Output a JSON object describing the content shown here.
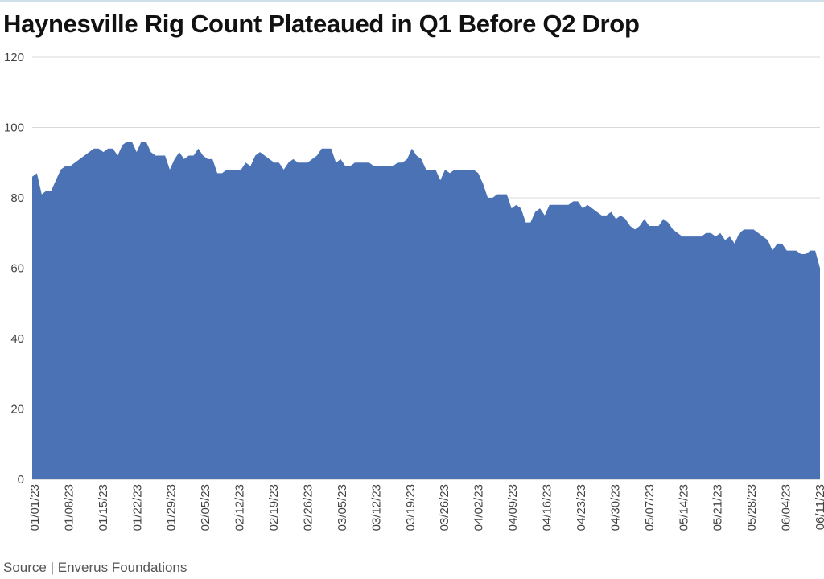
{
  "title": "Haynesville Rig Count Plateaued in Q1 Before Q2 Drop",
  "source": "Source | Enverus Foundations",
  "colors": {
    "area": "#4a72b5",
    "grid": "#d9d9d9",
    "axis": "#bfbfbf",
    "text": "#444444"
  },
  "chart_data": {
    "type": "area",
    "title": "Haynesville Rig Count Plateaued in Q1 Before Q2 Drop",
    "xlabel": "",
    "ylabel": "",
    "ylim": [
      0,
      120
    ],
    "yticks": [
      0,
      20,
      40,
      60,
      80,
      100,
      120
    ],
    "grid": true,
    "x_tick_labels": [
      "01/01/23",
      "01/08/23",
      "01/15/23",
      "01/22/23",
      "01/29/23",
      "02/05/23",
      "02/12/23",
      "02/19/23",
      "02/26/23",
      "03/05/23",
      "03/12/23",
      "03/19/23",
      "03/26/23",
      "04/02/23",
      "04/09/23",
      "04/16/23",
      "04/23/23",
      "04/30/23",
      "05/07/23",
      "05/14/23",
      "05/21/23",
      "05/28/23",
      "06/04/23",
      "06/11/23"
    ],
    "x_start": "01/01/23",
    "x_end": "06/12/23",
    "series": [
      {
        "values": [
          86,
          87,
          81,
          82,
          82,
          85,
          88,
          89,
          89,
          90,
          91,
          92,
          93,
          94,
          94,
          93,
          94,
          94,
          92,
          95,
          96,
          96,
          93,
          96,
          96,
          93,
          92,
          92,
          92,
          88,
          91,
          93,
          91,
          92,
          92,
          94,
          92,
          91,
          91,
          87,
          87,
          88,
          88,
          88,
          88,
          90,
          89,
          92,
          93,
          92,
          91,
          90,
          90,
          88,
          90,
          91,
          90,
          90,
          90,
          91,
          92,
          94,
          94,
          94,
          90,
          91,
          89,
          89,
          90,
          90,
          90,
          90,
          89,
          89,
          89,
          89,
          89,
          90,
          90,
          91,
          94,
          92,
          91,
          88,
          88,
          88,
          85,
          88,
          87,
          88,
          88,
          88,
          88,
          88,
          87,
          84,
          80,
          80,
          81,
          81,
          81,
          77,
          78,
          77,
          73,
          73,
          76,
          77,
          75,
          78,
          78,
          78,
          78,
          78,
          79,
          79,
          77,
          78,
          77,
          76,
          75,
          75,
          76,
          74,
          75,
          74,
          72,
          71,
          72,
          74,
          72,
          72,
          72,
          74,
          73,
          71,
          70,
          69,
          69,
          69,
          69,
          69,
          70,
          70,
          69,
          70,
          68,
          69,
          67,
          70,
          71,
          71,
          71,
          70,
          69,
          68,
          65,
          67,
          67,
          65,
          65,
          65,
          64,
          64,
          65,
          65,
          60
        ]
      }
    ]
  }
}
